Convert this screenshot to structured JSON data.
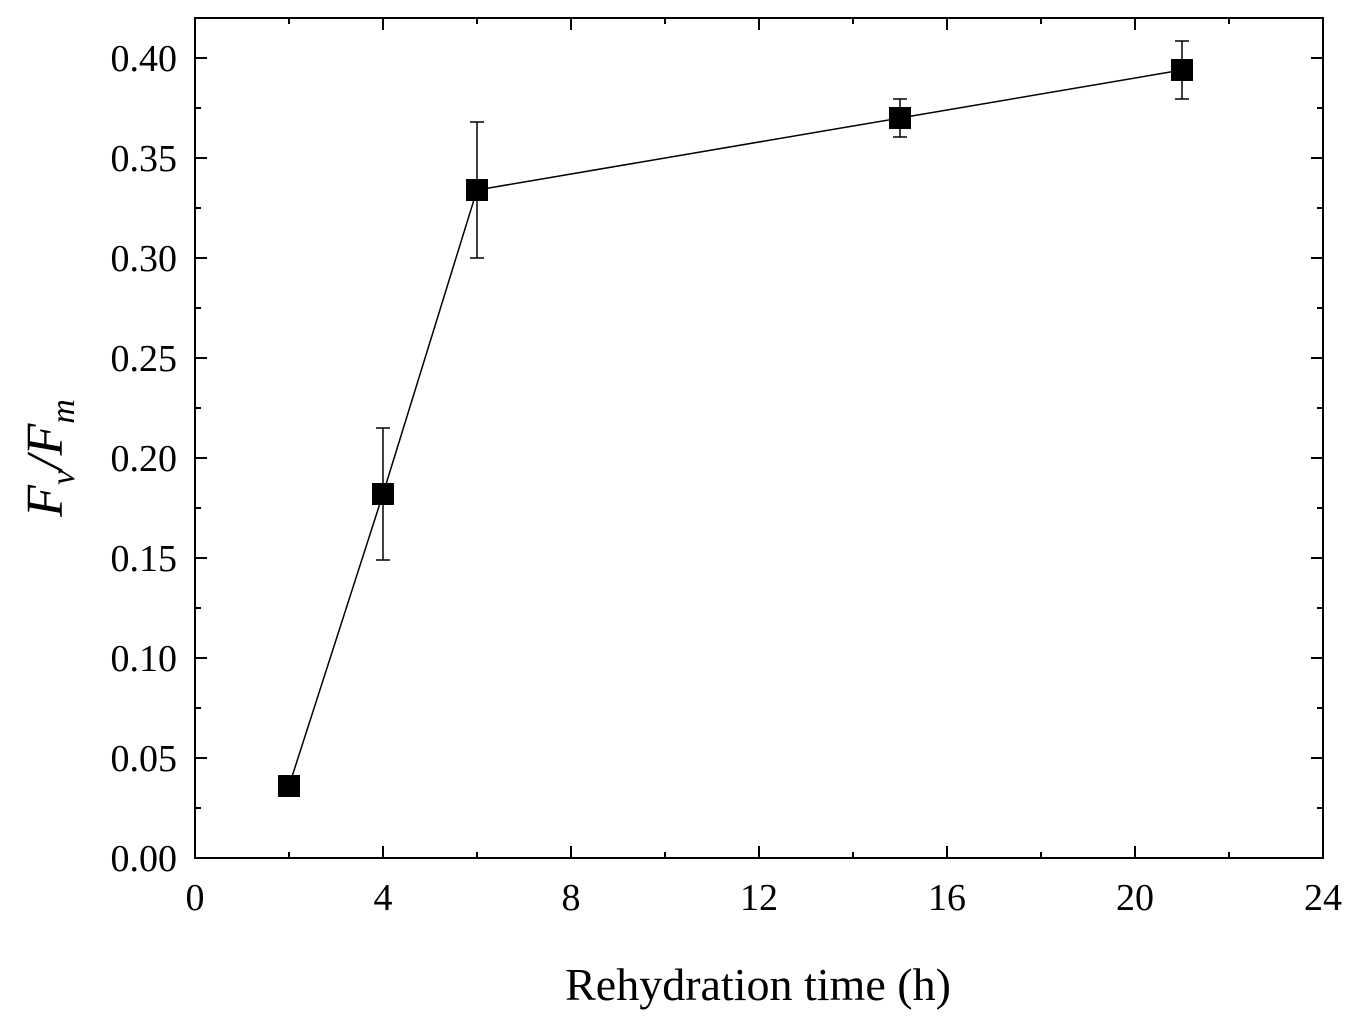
{
  "chart_data": {
    "type": "line",
    "title": "",
    "xlabel": "Rehydration time (h)",
    "ylabel": {
      "var1": "F",
      "sub1": "v",
      "slash": "/",
      "var2": "F",
      "sub2": "m"
    },
    "xlim": [
      0,
      24
    ],
    "ylim": [
      0.0,
      0.42
    ],
    "x_ticks": [
      0,
      4,
      8,
      12,
      16,
      20,
      24
    ],
    "x_tick_labels": [
      "0",
      "4",
      "8",
      "12",
      "16",
      "20",
      "24"
    ],
    "y_ticks": [
      0.0,
      0.05,
      0.1,
      0.15,
      0.2,
      0.25,
      0.3,
      0.35,
      0.4
    ],
    "y_tick_labels": [
      "0.00",
      "0.05",
      "0.10",
      "0.15",
      "0.20",
      "0.25",
      "0.30",
      "0.35",
      "0.40"
    ],
    "grid": false,
    "series": [
      {
        "name": "Fv/Fm",
        "marker": "square",
        "color": "#000000",
        "x": [
          2,
          4,
          6,
          15,
          21
        ],
        "y": [
          0.036,
          0.182,
          0.334,
          0.37,
          0.394
        ],
        "error": [
          0.0,
          0.033,
          0.034,
          0.0095,
          0.0145
        ]
      }
    ]
  }
}
